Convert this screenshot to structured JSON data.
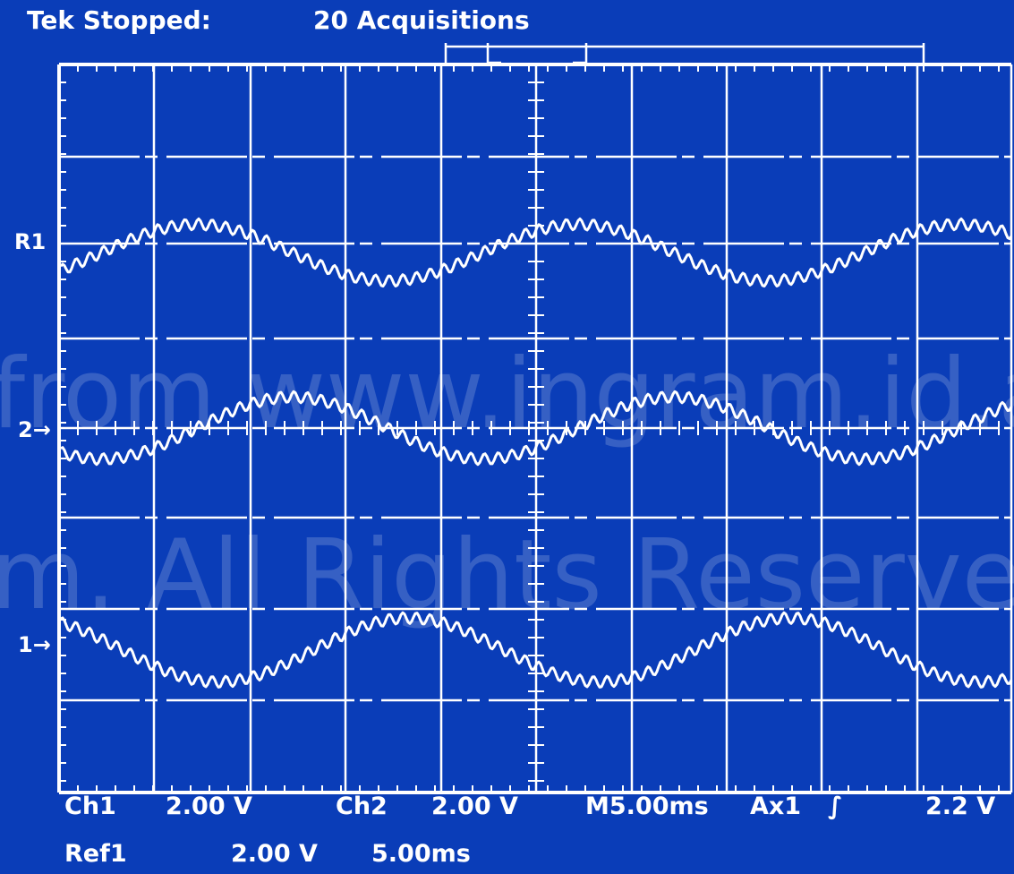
{
  "status": {
    "state": "Tek Stopped:",
    "acquisitions": "20 Acquisitions"
  },
  "markers": {
    "ref1": "R1",
    "ch2": "2→",
    "ch1": "1→"
  },
  "readout": {
    "ch1_label": "Ch1",
    "ch1_scale": "2.00 V",
    "ch2_label": "Ch2",
    "ch2_scale": "2.00 V",
    "timebase": "M5.00ms",
    "trigger_source": "Ax1",
    "trigger_slope_symbol": "∫",
    "trigger_level": "2.2 V",
    "ref1_label": "Ref1",
    "ref1_scale": "2.00 V",
    "ref1_time": "5.00ms"
  },
  "watermark": {
    "line1": "from www.ingram.id.au",
    "line2": "m. All Rights Reserved"
  },
  "colors": {
    "background": "#0a3db8",
    "trace": "#ffffff"
  },
  "chart_data": {
    "type": "line",
    "series": [
      {
        "name": "R1",
        "offset_div": 1.92,
        "amplitude_div": 0.31,
        "phase_deg": -40,
        "ripple_div": 0.06
      },
      {
        "name": "2",
        "offset_div": 0,
        "amplitude_div": 0.34,
        "phase_deg": 230,
        "ripple_div": 0.06
      },
      {
        "name": "1",
        "offset_div": -2.43,
        "amplitude_div": 0.35,
        "phase_deg": 120,
        "ripple_div": 0.06
      }
    ],
    "grid": true
  }
}
